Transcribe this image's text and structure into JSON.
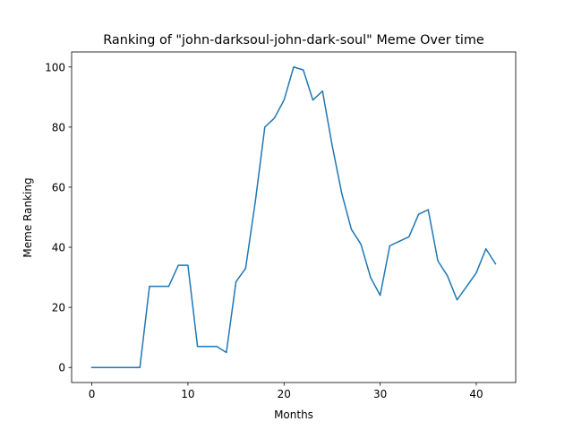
{
  "chart_data": {
    "type": "line",
    "title": "Ranking of \"john-darksoul-john-dark-soul\" Meme Over time",
    "xlabel": "Months",
    "ylabel": "Meme Ranking",
    "xlim": [
      -2.1,
      44.1
    ],
    "ylim": [
      -5,
      105
    ],
    "xticks": [
      0,
      10,
      20,
      30,
      40
    ],
    "yticks": [
      0,
      20,
      40,
      60,
      80,
      100
    ],
    "grid": false,
    "line_color": "#1f77b4",
    "series": [
      {
        "x": [
          0,
          1,
          2,
          3,
          4,
          5,
          6,
          7,
          8,
          9,
          10,
          11,
          12,
          13,
          14,
          15,
          16,
          17,
          18,
          19,
          20,
          21,
          22,
          23,
          24,
          25,
          26,
          27,
          28,
          29,
          30,
          31,
          32,
          33,
          34,
          35,
          36,
          37,
          38,
          39,
          40,
          41,
          42
        ],
        "values": [
          0,
          0,
          0,
          0,
          0,
          0,
          27,
          27,
          27,
          34,
          34,
          7,
          7,
          7,
          5,
          28.5,
          33,
          55,
          80,
          83,
          89,
          100,
          99,
          89,
          92,
          74,
          58,
          46,
          41,
          30,
          24,
          40.5,
          42,
          43.5,
          51,
          52.5,
          35.5,
          30.5,
          22.5,
          27,
          31.5,
          39.5,
          34.5
        ]
      }
    ]
  }
}
